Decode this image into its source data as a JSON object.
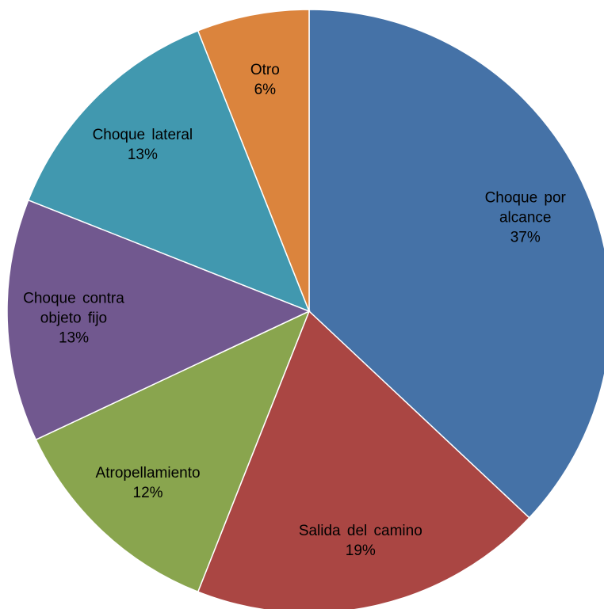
{
  "chart_data": {
    "type": "pie",
    "categories": [
      "Choque por alcance",
      "Salida del camino",
      "Atropellamiento",
      "Choque contra objeto fijo",
      "Choque lateral",
      "Otro"
    ],
    "values": [
      37,
      19,
      12,
      13,
      13,
      6
    ],
    "value_labels": [
      "37%",
      "19%",
      "12%",
      "13%",
      "13%",
      "6%"
    ],
    "colors": [
      "#4572a7",
      "#aa4643",
      "#89a54e",
      "#71588f",
      "#4198af",
      "#db843d"
    ]
  }
}
